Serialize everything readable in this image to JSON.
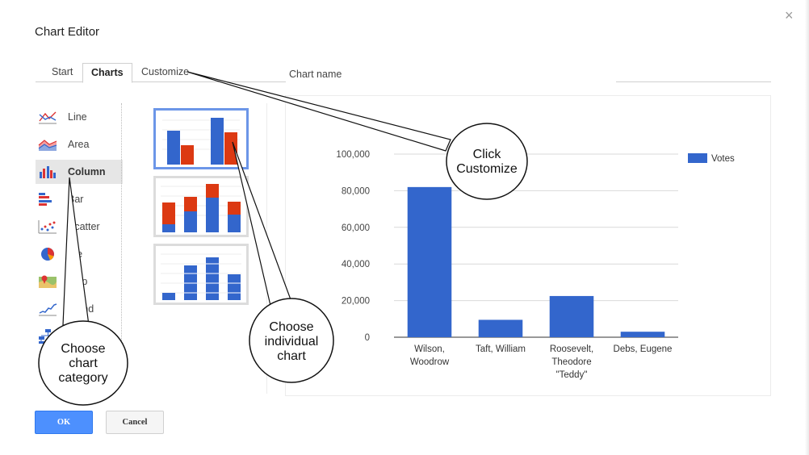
{
  "dialog": {
    "title": "Chart Editor",
    "close_glyph": "×"
  },
  "tabs": [
    {
      "label": "Start"
    },
    {
      "label": "Charts",
      "active": true
    },
    {
      "label": "Customize"
    }
  ],
  "chart_name": {
    "label": "Chart name",
    "value": ""
  },
  "categories": [
    {
      "label": "Line",
      "icon": "line-chart-icon"
    },
    {
      "label": "Area",
      "icon": "area-chart-icon"
    },
    {
      "label": "Column",
      "icon": "column-chart-icon",
      "active": true
    },
    {
      "label": "Bar",
      "icon": "bar-chart-icon"
    },
    {
      "label": "Scatter",
      "icon": "scatter-chart-icon"
    },
    {
      "label": "Pie",
      "icon": "pie-chart-icon"
    },
    {
      "label": "Map",
      "icon": "map-chart-icon"
    },
    {
      "label": "Trend",
      "icon": "trend-chart-icon"
    },
    {
      "label": "",
      "icon": "org-chart-icon"
    }
  ],
  "thumbnails": [
    {
      "name": "clustered-column",
      "selected": true
    },
    {
      "name": "stacked-column",
      "selected": false
    },
    {
      "name": "single-series-column",
      "selected": false
    }
  ],
  "colors": {
    "blue": "#3366cc",
    "red": "#dc3912",
    "ok_button": "#4d90fe",
    "selected_border": "#6c96e8"
  },
  "chart_data": {
    "type": "bar",
    "categories": [
      "Wilson, Woodrow",
      "Taft, William",
      "Roosevelt, Theodore \"Teddy\"",
      "Debs, Eugene"
    ],
    "category_label_lines": [
      [
        "Wilson,",
        "Woodrow"
      ],
      [
        "Taft, William"
      ],
      [
        "Roosevelt,",
        "Theodore",
        "\"Teddy\""
      ],
      [
        "Debs, Eugene"
      ]
    ],
    "series": [
      {
        "name": "Votes",
        "values": [
          82000,
          9500,
          22500,
          3000
        ],
        "color": "#3366cc"
      }
    ],
    "yticks": [
      "0",
      "20,000",
      "40,000",
      "60,000",
      "80,000",
      "100,000"
    ],
    "ylim": [
      0,
      100000
    ],
    "grid": true,
    "legend": "top-right",
    "title": "",
    "xlabel": "",
    "ylabel": ""
  },
  "buttons": {
    "ok": "OK",
    "cancel": "Cancel"
  },
  "callouts": {
    "customize": [
      "Click",
      "Customize"
    ],
    "individual_chart": [
      "Choose",
      "individual",
      "chart"
    ],
    "chart_category": [
      "Choose",
      "chart",
      "category"
    ]
  }
}
